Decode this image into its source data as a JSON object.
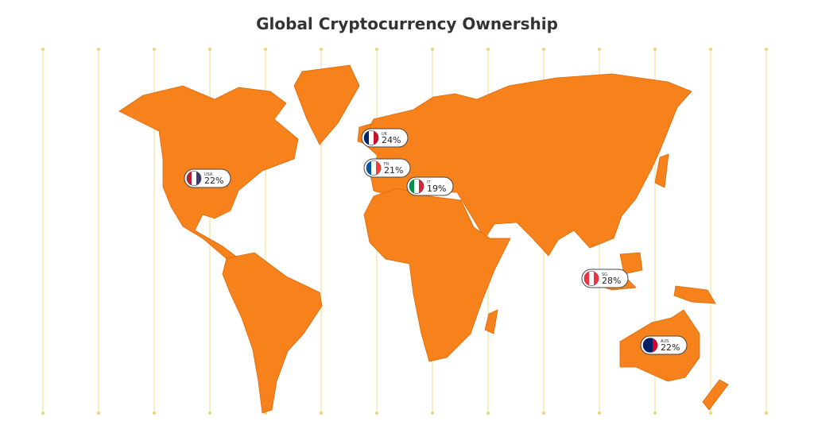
{
  "title": "Global Cryptocurrency Ownership",
  "markers": [
    {
      "code": "USA",
      "value": "22%"
    },
    {
      "code": "UK",
      "value": "24%"
    },
    {
      "code": "FR",
      "value": "21%"
    },
    {
      "code": "IT",
      "value": "19%"
    },
    {
      "code": "SG",
      "value": "28%"
    },
    {
      "code": "AUS",
      "value": "22%"
    }
  ]
}
